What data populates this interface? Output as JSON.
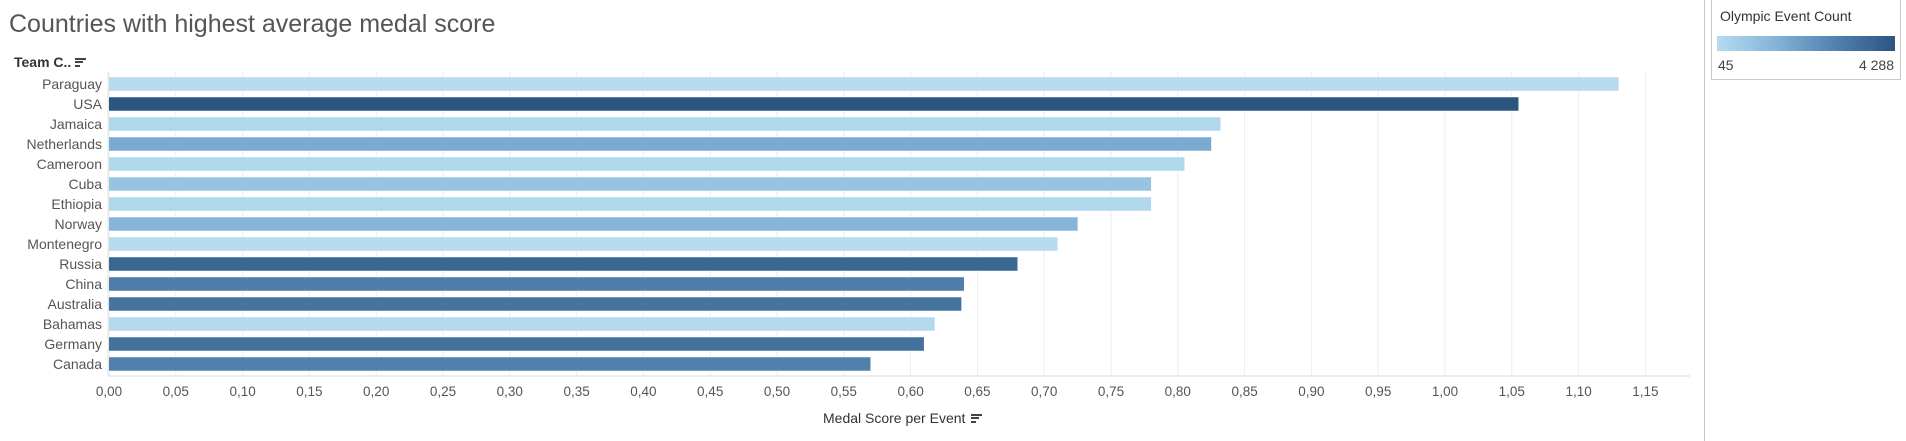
{
  "chart_data": {
    "type": "bar",
    "orientation": "horizontal",
    "title": "Countries with highest average medal score",
    "row_header": "Team C..",
    "xlabel": "Medal Score per Event",
    "xlim": [
      0,
      1.15
    ],
    "x_ticks": [
      "0,00",
      "0,05",
      "0,10",
      "0,15",
      "0,20",
      "0,25",
      "0,30",
      "0,35",
      "0,40",
      "0,45",
      "0,50",
      "0,55",
      "0,60",
      "0,65",
      "0,70",
      "0,75",
      "0,80",
      "0,85",
      "0,90",
      "0,95",
      "1,00",
      "1,05",
      "1,10",
      "1,15"
    ],
    "grid": "vertical",
    "categories": [
      "Paraguay",
      "USA",
      "Jamaica",
      "Netherlands",
      "Cameroon",
      "Cuba",
      "Ethiopia",
      "Norway",
      "Montenegro",
      "Russia",
      "China",
      "Australia",
      "Bahamas",
      "Germany",
      "Canada"
    ],
    "values": [
      1.13,
      1.055,
      0.832,
      0.825,
      0.805,
      0.78,
      0.78,
      0.725,
      0.71,
      0.68,
      0.64,
      0.638,
      0.618,
      0.61,
      0.57
    ],
    "color_values": [
      50,
      4288,
      200,
      1700,
      150,
      900,
      200,
      1400,
      45,
      3700,
      3000,
      3300,
      100,
      3400,
      2900
    ],
    "legend": {
      "title": "Olympic Event Count",
      "min_label": "45",
      "max_label": "4 288",
      "min": 45,
      "max": 4288,
      "placement": "top-right",
      "ramp": [
        "#b6dbf0",
        "#84b3d8",
        "#5181ad",
        "#2c5580"
      ]
    }
  }
}
